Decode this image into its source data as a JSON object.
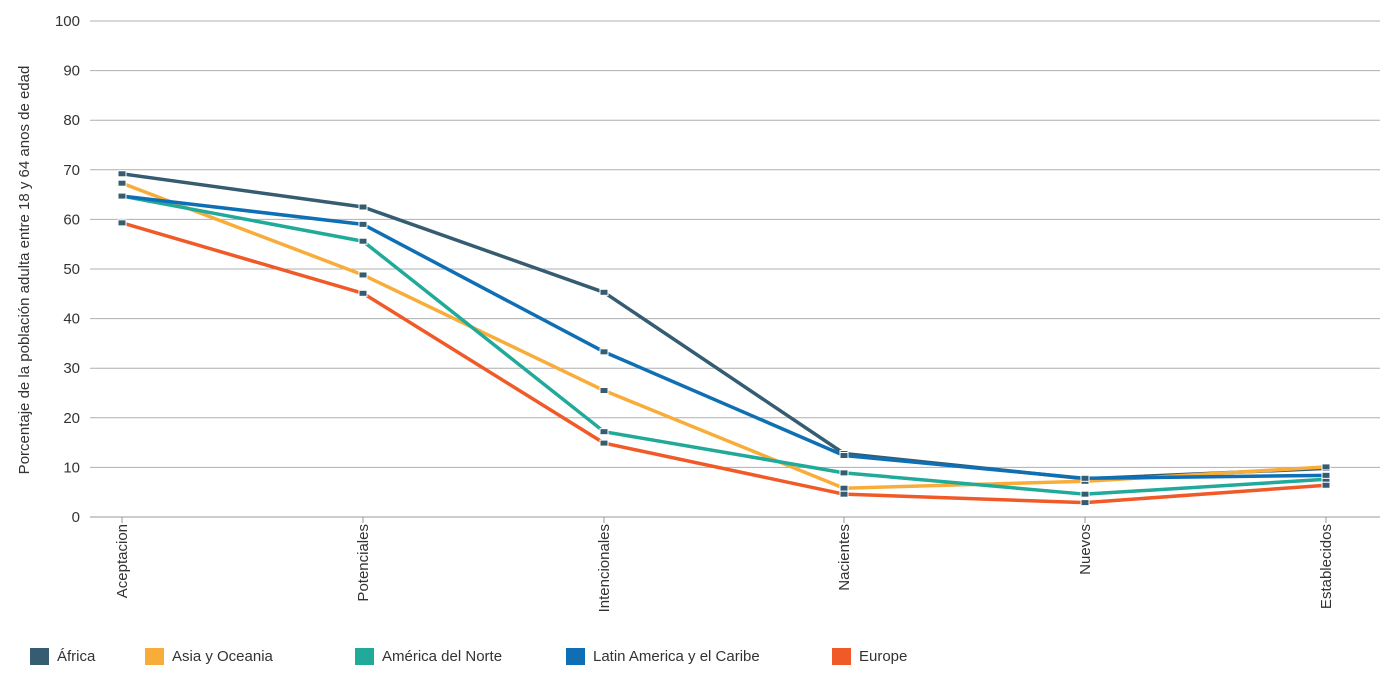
{
  "chart_data": {
    "type": "line",
    "categories": [
      "Aceptacion",
      "Potenciales",
      "Intencionales",
      "Nacientes",
      "Nuevos",
      "Establecidos"
    ],
    "ylabel": "Porcentaje de la población adulta entre 18 y 64 anos de edad",
    "ylim": [
      0,
      100
    ],
    "yticks": [
      0,
      10,
      20,
      30,
      40,
      50,
      60,
      70,
      80,
      90,
      100
    ],
    "grid": true,
    "legend_position": "bottom-left",
    "series": [
      {
        "name": "África",
        "color": "#365C71",
        "values": [
          69.2,
          62.5,
          45.3,
          12.8,
          7.7,
          9.8
        ]
      },
      {
        "name": "Asia y Oceania",
        "color": "#F8AD3A",
        "values": [
          67.3,
          48.8,
          25.5,
          5.8,
          7.2,
          10.1
        ]
      },
      {
        "name": "América del Norte",
        "color": "#21A99A",
        "values": [
          64.7,
          55.6,
          17.2,
          8.9,
          4.6,
          7.6
        ]
      },
      {
        "name": "Latin America y el Caribe",
        "color": "#0F6FB4",
        "values": [
          64.7,
          59.0,
          33.3,
          12.4,
          7.8,
          8.4
        ]
      },
      {
        "name": "Europe",
        "color": "#F05A28",
        "values": [
          59.3,
          45.1,
          14.9,
          4.6,
          2.9,
          6.4
        ]
      }
    ]
  }
}
